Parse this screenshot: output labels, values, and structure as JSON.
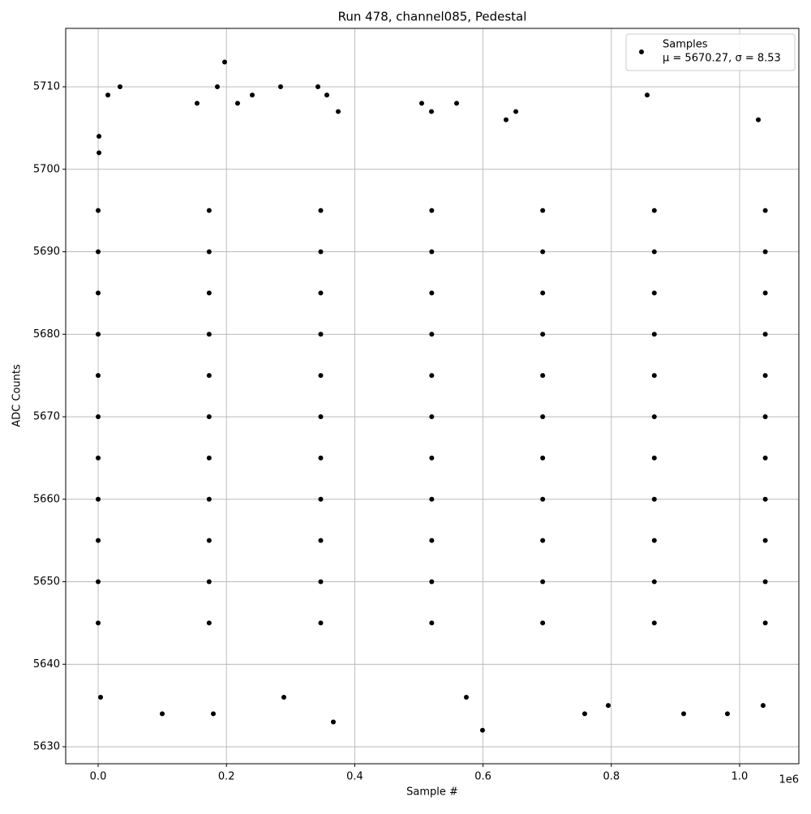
{
  "chart_data": {
    "type": "scatter",
    "title": "Run 478, channel085, Pedestal",
    "xlabel": "Sample #",
    "ylabel": "ADC Counts",
    "x_offset_label": "1e6",
    "legend_note": "μ = 5670.27, σ = 8.53",
    "legend": "upper right",
    "grid": true,
    "xlim": [
      -50600,
      1092300
    ],
    "ylim": [
      5627.94,
      5717.08
    ],
    "xticks": [
      {
        "value": 0,
        "label": "0.0"
      },
      {
        "value": 200000,
        "label": "0.2"
      },
      {
        "value": 400000,
        "label": "0.4"
      },
      {
        "value": 600000,
        "label": "0.6"
      },
      {
        "value": 800000,
        "label": "0.8"
      },
      {
        "value": 1000000,
        "label": "1.0"
      }
    ],
    "yticks": [
      5630,
      5640,
      5650,
      5660,
      5670,
      5680,
      5690,
      5700,
      5710
    ],
    "series": [
      {
        "name": "Samples",
        "color": "#000000",
        "x": [
          0,
          173000,
          347000,
          520000,
          693000,
          867000,
          1040000,
          0,
          173000,
          347000,
          520000,
          693000,
          867000,
          1040000,
          0,
          173000,
          347000,
          520000,
          693000,
          867000,
          1040000,
          0,
          173000,
          347000,
          520000,
          693000,
          867000,
          1040000,
          0,
          173000,
          347000,
          520000,
          693000,
          867000,
          1040000,
          0,
          173000,
          347000,
          520000,
          693000,
          867000,
          1040000,
          0,
          173000,
          347000,
          520000,
          693000,
          867000,
          1040000,
          0,
          173000,
          347000,
          520000,
          693000,
          867000,
          1040000,
          0,
          173000,
          347000,
          520000,
          693000,
          867000,
          1040000,
          0,
          173000,
          347000,
          520000,
          693000,
          867000,
          1040000,
          0,
          173000,
          347000,
          520000,
          693000,
          867000,
          1040000,
          1300,
          1300,
          3800,
          15200,
          34100,
          99900,
          154200,
          179500,
          185800,
          197200,
          217400,
          240200,
          284400,
          289500,
          342600,
          356500,
          366600,
          374200,
          504400,
          519600,
          558800,
          573900,
          599200,
          635900,
          651100,
          758500,
          795200,
          855900,
          912800,
          981000,
          1029100,
          1036600
        ],
        "y": [
          5645,
          5645,
          5645,
          5645,
          5645,
          5645,
          5645,
          5650,
          5650,
          5650,
          5650,
          5650,
          5650,
          5650,
          5655,
          5655,
          5655,
          5655,
          5655,
          5655,
          5655,
          5660,
          5660,
          5660,
          5660,
          5660,
          5660,
          5660,
          5665,
          5665,
          5665,
          5665,
          5665,
          5665,
          5665,
          5670,
          5670,
          5670,
          5670,
          5670,
          5670,
          5670,
          5675,
          5675,
          5675,
          5675,
          5675,
          5675,
          5675,
          5680,
          5680,
          5680,
          5680,
          5680,
          5680,
          5680,
          5685,
          5685,
          5685,
          5685,
          5685,
          5685,
          5685,
          5690,
          5690,
          5690,
          5690,
          5690,
          5690,
          5690,
          5695,
          5695,
          5695,
          5695,
          5695,
          5695,
          5695,
          5704,
          5702,
          5636,
          5709,
          5710,
          5634,
          5708,
          5634,
          5710,
          5713,
          5708,
          5709,
          5710,
          5636,
          5710,
          5709,
          5633,
          5707,
          5708,
          5707,
          5708,
          5636,
          5632,
          5706,
          5707,
          5634,
          5635,
          5709,
          5634,
          5634,
          5706,
          5635
        ]
      }
    ]
  }
}
